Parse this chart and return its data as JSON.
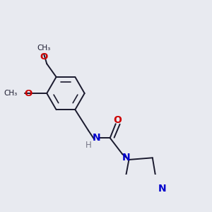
{
  "background_color": "#e8eaf0",
  "bond_color": "#1a1a2e",
  "nitrogen_color": "#0000cc",
  "oxygen_color": "#cc0000",
  "line_width": 1.4,
  "font_size": 8.5,
  "figsize": [
    3.0,
    3.0
  ],
  "dpi": 100,
  "xlim": [
    0.0,
    10.0
  ],
  "ylim": [
    0.0,
    10.0
  ]
}
